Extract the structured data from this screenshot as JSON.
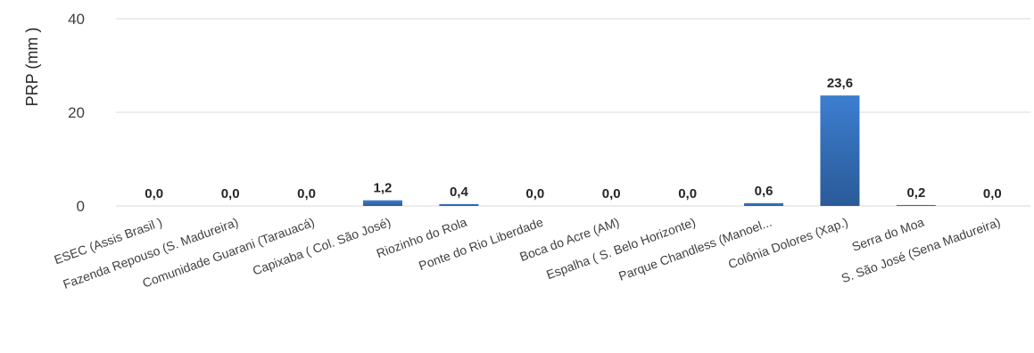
{
  "chart_data": {
    "type": "bar",
    "ylabel": "PRP (mm )",
    "ylim": [
      0,
      40
    ],
    "yticks": [
      0,
      20,
      40
    ],
    "ytick_labels": [
      "0",
      "20",
      "40"
    ],
    "grid": true,
    "categories": [
      "ESEC (Assis Brasil )",
      "Fazenda Repouso (S. Madureira)",
      "Comunidade Guarani (Tarauacá)",
      "Capixaba ( Col. São José)",
      "Riozinho do Rola",
      "Ponte do Rio Liberdade",
      "Boca do Acre (AM)",
      "Espalha ( S. Belo Horizonte)",
      "Parque Chandless (Manoel...",
      "Colônia Dolores (Xap.)",
      "Serra do Moa",
      "S. São José (Sena Madureira)"
    ],
    "values": [
      0.0,
      0.0,
      0.0,
      1.2,
      0.4,
      0.0,
      0.0,
      0.0,
      0.6,
      23.6,
      0.2,
      0.0
    ],
    "data_labels": [
      "0,0",
      "0,0",
      "0,0",
      "1,2",
      "0,4",
      "0,0",
      "0,0",
      "0,0",
      "0,6",
      "23,6",
      "0,2",
      "0,0"
    ],
    "colors": {
      "bar_top": "#3c7ed0",
      "bar_bottom": "#2a5a98",
      "grid": "#d9d9d9"
    }
  }
}
